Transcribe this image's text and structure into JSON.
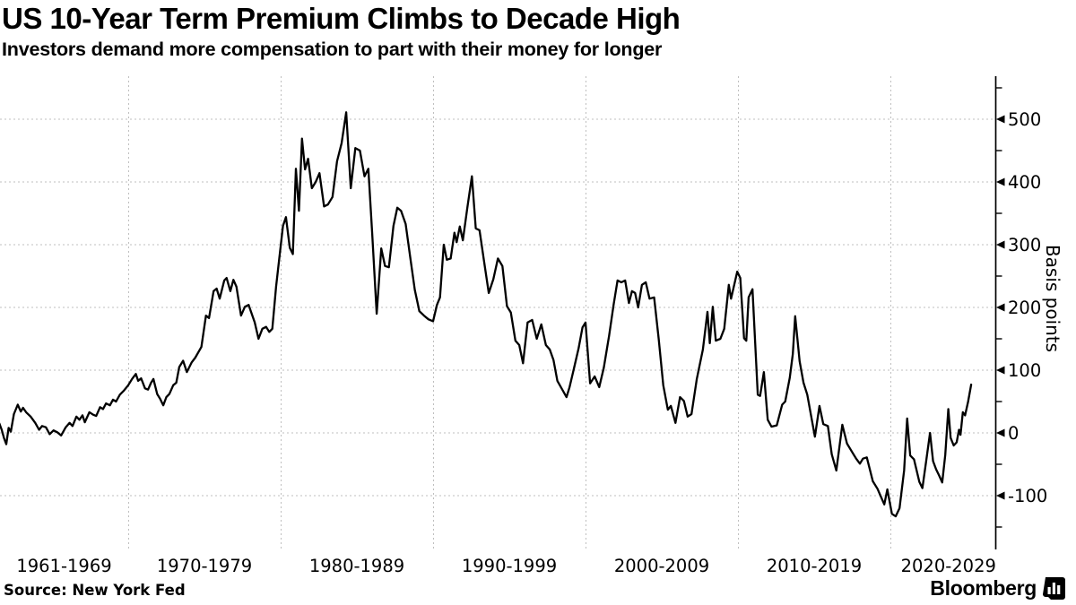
{
  "header": {
    "title": "US 10-Year Term Premium Climbs to Decade High",
    "subtitle": "Investors demand more compensation to part with their money for longer"
  },
  "footer": {
    "source": "Source: New York Fed",
    "brand": "Bloomberg",
    "brand_icon": "bloomberg-bar-chart-logo"
  },
  "colors": {
    "line": "#000000",
    "axis": "#000000",
    "grid": "#bfbfbf",
    "background": "#ffffff",
    "text": "#000000"
  },
  "chart_data": {
    "type": "line",
    "title": "US 10-Year Term Premium Climbs to Decade High",
    "subtitle": "Investors demand more compensation to part with their money for longer",
    "xlabel": "",
    "ylabel": "Basis points",
    "y_axis_side": "right",
    "grid": "dotted",
    "legend": "none",
    "y_ticks": [
      500,
      400,
      300,
      200,
      100,
      0,
      -100
    ],
    "y_minor_ticks": [
      550,
      450,
      350,
      250,
      150,
      50,
      -50,
      -150
    ],
    "ylim": [
      -175,
      560
    ],
    "x_categories": [
      "1961-1969",
      "1970-1979",
      "1980-1989",
      "1990-1999",
      "2000-2009",
      "2010-2019",
      "2020-2029"
    ],
    "x_decade_gridlines": [
      1970,
      1980,
      1990,
      2000,
      2010,
      2020
    ],
    "x_range_years": [
      1961.5,
      2025.4
    ],
    "series": [
      {
        "name": "US 10-year term premium (basis points)",
        "points": [
          [
            1961.55,
            15
          ],
          [
            1961.7,
            5
          ],
          [
            1961.85,
            -8
          ],
          [
            1962.0,
            -18
          ],
          [
            1962.15,
            8
          ],
          [
            1962.3,
            2
          ],
          [
            1962.5,
            30
          ],
          [
            1962.75,
            45
          ],
          [
            1962.95,
            34
          ],
          [
            1963.1,
            40
          ],
          [
            1963.3,
            33
          ],
          [
            1963.6,
            26
          ],
          [
            1963.9,
            16
          ],
          [
            1964.15,
            5
          ],
          [
            1964.35,
            11
          ],
          [
            1964.6,
            9
          ],
          [
            1964.85,
            -2
          ],
          [
            1965.1,
            4
          ],
          [
            1965.35,
            1
          ],
          [
            1965.6,
            -4
          ],
          [
            1965.9,
            9
          ],
          [
            1966.15,
            16
          ],
          [
            1966.35,
            11
          ],
          [
            1966.6,
            26
          ],
          [
            1966.8,
            21
          ],
          [
            1967.0,
            28
          ],
          [
            1967.15,
            17
          ],
          [
            1967.45,
            33
          ],
          [
            1967.7,
            29
          ],
          [
            1967.9,
            27
          ],
          [
            1968.15,
            41
          ],
          [
            1968.35,
            38
          ],
          [
            1968.55,
            47
          ],
          [
            1968.8,
            44
          ],
          [
            1969.0,
            53
          ],
          [
            1969.2,
            50
          ],
          [
            1969.45,
            61
          ],
          [
            1969.7,
            67
          ],
          [
            1970.0,
            76
          ],
          [
            1970.25,
            86
          ],
          [
            1970.5,
            94
          ],
          [
            1970.65,
            83
          ],
          [
            1970.85,
            87
          ],
          [
            1971.1,
            71
          ],
          [
            1971.3,
            69
          ],
          [
            1971.5,
            80
          ],
          [
            1971.65,
            86
          ],
          [
            1971.9,
            62
          ],
          [
            1972.1,
            54
          ],
          [
            1972.3,
            44
          ],
          [
            1972.5,
            57
          ],
          [
            1972.7,
            62
          ],
          [
            1972.95,
            76
          ],
          [
            1973.15,
            80
          ],
          [
            1973.35,
            105
          ],
          [
            1973.6,
            115
          ],
          [
            1973.85,
            97
          ],
          [
            1974.15,
            112
          ],
          [
            1974.4,
            120
          ],
          [
            1974.8,
            137
          ],
          [
            1975.1,
            187
          ],
          [
            1975.3,
            183
          ],
          [
            1975.6,
            226
          ],
          [
            1975.8,
            230
          ],
          [
            1976.0,
            214
          ],
          [
            1976.3,
            243
          ],
          [
            1976.45,
            247
          ],
          [
            1976.7,
            226
          ],
          [
            1976.9,
            244
          ],
          [
            1977.1,
            233
          ],
          [
            1977.4,
            187
          ],
          [
            1977.65,
            201
          ],
          [
            1977.9,
            204
          ],
          [
            1978.3,
            176
          ],
          [
            1978.55,
            150
          ],
          [
            1978.8,
            166
          ],
          [
            1979.05,
            169
          ],
          [
            1979.25,
            161
          ],
          [
            1979.45,
            166
          ],
          [
            1979.7,
            233
          ],
          [
            1979.9,
            276
          ],
          [
            1980.15,
            330
          ],
          [
            1980.35,
            344
          ],
          [
            1980.6,
            295
          ],
          [
            1980.8,
            285
          ],
          [
            1981.0,
            421
          ],
          [
            1981.2,
            354
          ],
          [
            1981.4,
            469
          ],
          [
            1981.6,
            420
          ],
          [
            1981.8,
            437
          ],
          [
            1982.05,
            390
          ],
          [
            1982.3,
            400
          ],
          [
            1982.55,
            414
          ],
          [
            1982.85,
            361
          ],
          [
            1983.1,
            364
          ],
          [
            1983.4,
            376
          ],
          [
            1983.7,
            433
          ],
          [
            1984.0,
            462
          ],
          [
            1984.3,
            511
          ],
          [
            1984.6,
            390
          ],
          [
            1984.9,
            454
          ],
          [
            1985.2,
            450
          ],
          [
            1985.5,
            409
          ],
          [
            1985.75,
            421
          ],
          [
            1986.0,
            320
          ],
          [
            1986.3,
            190
          ],
          [
            1986.6,
            294
          ],
          [
            1986.85,
            266
          ],
          [
            1987.1,
            264
          ],
          [
            1987.4,
            330
          ],
          [
            1987.65,
            359
          ],
          [
            1987.9,
            354
          ],
          [
            1988.2,
            333
          ],
          [
            1988.5,
            280
          ],
          [
            1988.8,
            228
          ],
          [
            1989.1,
            194
          ],
          [
            1989.4,
            187
          ],
          [
            1989.7,
            181
          ],
          [
            1990.0,
            178
          ],
          [
            1990.25,
            204
          ],
          [
            1990.45,
            216
          ],
          [
            1990.7,
            300
          ],
          [
            1990.9,
            276
          ],
          [
            1991.15,
            278
          ],
          [
            1991.4,
            319
          ],
          [
            1991.55,
            304
          ],
          [
            1991.75,
            329
          ],
          [
            1991.95,
            307
          ],
          [
            1992.25,
            360
          ],
          [
            1992.55,
            409
          ],
          [
            1992.8,
            326
          ],
          [
            1993.05,
            323
          ],
          [
            1993.35,
            273
          ],
          [
            1993.65,
            223
          ],
          [
            1993.95,
            245
          ],
          [
            1994.25,
            278
          ],
          [
            1994.55,
            266
          ],
          [
            1994.85,
            202
          ],
          [
            1995.1,
            192
          ],
          [
            1995.4,
            147
          ],
          [
            1995.65,
            140
          ],
          [
            1995.9,
            111
          ],
          [
            1996.2,
            176
          ],
          [
            1996.5,
            180
          ],
          [
            1996.8,
            150
          ],
          [
            1997.1,
            173
          ],
          [
            1997.4,
            140
          ],
          [
            1997.65,
            133
          ],
          [
            1997.9,
            116
          ],
          [
            1998.15,
            83
          ],
          [
            1998.45,
            70
          ],
          [
            1998.75,
            57
          ],
          [
            1998.95,
            73
          ],
          [
            1999.25,
            104
          ],
          [
            1999.55,
            135
          ],
          [
            1999.8,
            168
          ],
          [
            2000.0,
            176
          ],
          [
            2000.3,
            79
          ],
          [
            2000.6,
            90
          ],
          [
            2000.9,
            73
          ],
          [
            2001.2,
            104
          ],
          [
            2001.55,
            155
          ],
          [
            2001.85,
            205
          ],
          [
            2002.1,
            243
          ],
          [
            2002.35,
            240
          ],
          [
            2002.6,
            243
          ],
          [
            2002.85,
            207
          ],
          [
            2003.05,
            226
          ],
          [
            2003.25,
            223
          ],
          [
            2003.45,
            200
          ],
          [
            2003.7,
            236
          ],
          [
            2003.95,
            240
          ],
          [
            2004.2,
            214
          ],
          [
            2004.5,
            216
          ],
          [
            2004.8,
            150
          ],
          [
            2005.1,
            76
          ],
          [
            2005.4,
            37
          ],
          [
            2005.6,
            43
          ],
          [
            2005.9,
            16
          ],
          [
            2006.2,
            57
          ],
          [
            2006.45,
            51
          ],
          [
            2006.7,
            26
          ],
          [
            2006.95,
            30
          ],
          [
            2007.3,
            86
          ],
          [
            2007.7,
            133
          ],
          [
            2008.0,
            193
          ],
          [
            2008.15,
            143
          ],
          [
            2008.35,
            201
          ],
          [
            2008.55,
            147
          ],
          [
            2008.85,
            150
          ],
          [
            2009.1,
            166
          ],
          [
            2009.4,
            236
          ],
          [
            2009.55,
            214
          ],
          [
            2009.95,
            257
          ],
          [
            2010.15,
            247
          ],
          [
            2010.4,
            151
          ],
          [
            2010.55,
            147
          ],
          [
            2010.7,
            216
          ],
          [
            2010.95,
            229
          ],
          [
            2011.3,
            61
          ],
          [
            2011.45,
            59
          ],
          [
            2011.7,
            97
          ],
          [
            2011.95,
            21
          ],
          [
            2012.2,
            10
          ],
          [
            2012.55,
            12
          ],
          [
            2012.9,
            45
          ],
          [
            2013.1,
            50
          ],
          [
            2013.4,
            88
          ],
          [
            2013.6,
            126
          ],
          [
            2013.75,
            186
          ],
          [
            2014.05,
            114
          ],
          [
            2014.3,
            80
          ],
          [
            2014.55,
            61
          ],
          [
            2015.05,
            -6
          ],
          [
            2015.35,
            43
          ],
          [
            2015.6,
            14
          ],
          [
            2015.9,
            11
          ],
          [
            2016.15,
            -34
          ],
          [
            2016.45,
            -60
          ],
          [
            2016.85,
            13
          ],
          [
            2017.15,
            -17
          ],
          [
            2017.45,
            -29
          ],
          [
            2017.75,
            -41
          ],
          [
            2018.0,
            -49
          ],
          [
            2018.2,
            -41
          ],
          [
            2018.45,
            -39
          ],
          [
            2018.85,
            -77
          ],
          [
            2019.15,
            -89
          ],
          [
            2019.6,
            -114
          ],
          [
            2019.8,
            -90
          ],
          [
            2020.1,
            -129
          ],
          [
            2020.35,
            -133
          ],
          [
            2020.6,
            -120
          ],
          [
            2020.9,
            -60
          ],
          [
            2021.1,
            23
          ],
          [
            2021.3,
            -36
          ],
          [
            2021.55,
            -42
          ],
          [
            2021.9,
            -78
          ],
          [
            2022.1,
            -88
          ],
          [
            2022.35,
            -45
          ],
          [
            2022.6,
            0
          ],
          [
            2022.8,
            -45
          ],
          [
            2023.0,
            -58
          ],
          [
            2023.2,
            -68
          ],
          [
            2023.4,
            -79
          ],
          [
            2023.6,
            -35
          ],
          [
            2023.8,
            38
          ],
          [
            2023.95,
            -8
          ],
          [
            2024.15,
            -20
          ],
          [
            2024.35,
            -15
          ],
          [
            2024.5,
            5
          ],
          [
            2024.6,
            -3
          ],
          [
            2024.75,
            33
          ],
          [
            2024.9,
            28
          ],
          [
            2025.1,
            50
          ],
          [
            2025.3,
            77
          ]
        ]
      }
    ]
  }
}
